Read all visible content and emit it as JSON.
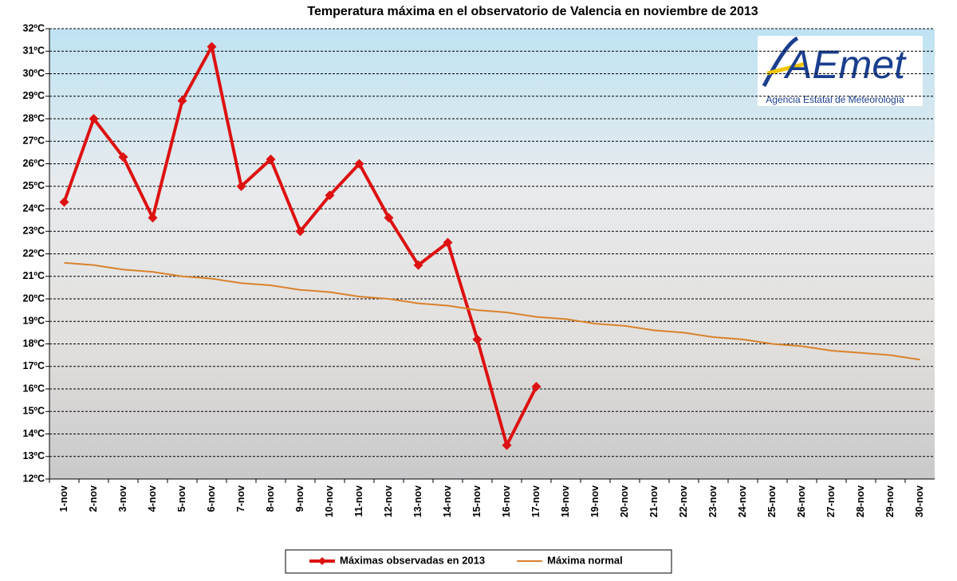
{
  "chart_data": {
    "type": "line",
    "title": "Temperatura máxima en el observatorio de Valencia en noviembre de 2013",
    "categories": [
      "1-nov",
      "2-nov",
      "3-nov",
      "4-nov",
      "5-nov",
      "6-nov",
      "7-nov",
      "8-nov",
      "9-nov",
      "10-nov",
      "11-nov",
      "12-nov",
      "13-nov",
      "14-nov",
      "15-nov",
      "16-nov",
      "17-nov",
      "18-nov",
      "19-nov",
      "20-nov",
      "21-nov",
      "22-nov",
      "23-nov",
      "24-nov",
      "25-nov",
      "26-nov",
      "27-nov",
      "28-nov",
      "29-nov",
      "30-nov"
    ],
    "series": [
      {
        "name": "Máximas observadas en 2013",
        "color": "#dd1111",
        "marker": "diamond",
        "values": [
          24.3,
          28.0,
          26.3,
          23.6,
          28.8,
          31.2,
          25.0,
          26.2,
          23.0,
          24.6,
          26.0,
          23.6,
          21.5,
          22.5,
          18.2,
          13.5,
          16.1,
          null,
          null,
          null,
          null,
          null,
          null,
          null,
          null,
          null,
          null,
          null,
          null,
          null
        ]
      },
      {
        "name": "Máxima normal",
        "color": "#d9822b",
        "values": [
          21.6,
          21.5,
          21.3,
          21.2,
          21.0,
          20.9,
          20.7,
          20.6,
          20.4,
          20.3,
          20.1,
          20.0,
          19.8,
          19.7,
          19.5,
          19.4,
          19.2,
          19.1,
          18.9,
          18.8,
          18.6,
          18.5,
          18.3,
          18.2,
          18.0,
          17.9,
          17.7,
          17.6,
          17.5,
          17.3
        ]
      }
    ],
    "ylim": [
      12,
      32
    ],
    "yticks": [
      {
        "value": 12,
        "label": "12ºC"
      },
      {
        "value": 13,
        "label": "13ºC"
      },
      {
        "value": 14,
        "label": "14ºC"
      },
      {
        "value": 15,
        "label": "15ºC"
      },
      {
        "value": 16,
        "label": "16ºC"
      },
      {
        "value": 17,
        "label": "17ºC"
      },
      {
        "value": 18,
        "label": "18ºC"
      },
      {
        "value": 19,
        "label": "19ºC"
      },
      {
        "value": 20,
        "label": "20ºC"
      },
      {
        "value": 21,
        "label": "21ºC"
      },
      {
        "value": 22,
        "label": "22ºC"
      },
      {
        "value": 23,
        "label": "23ºC"
      },
      {
        "value": 24,
        "label": "24ºC"
      },
      {
        "value": 25,
        "label": "25ºC"
      },
      {
        "value": 26,
        "label": "26ºC"
      },
      {
        "value": 27,
        "label": "27ºC"
      },
      {
        "value": 28,
        "label": "28ºC"
      },
      {
        "value": 29,
        "label": "29ºC"
      },
      {
        "value": 30,
        "label": "30ºC"
      },
      {
        "value": 31,
        "label": "31ºC"
      },
      {
        "value": 32,
        "label": "32ºC"
      }
    ],
    "grid": true,
    "legend": "bottom"
  },
  "logo": {
    "mark": "AEmet",
    "text": "Agencia Estatal de Meteorología"
  }
}
